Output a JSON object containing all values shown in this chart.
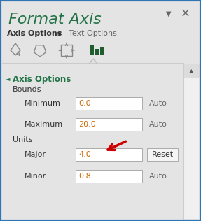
{
  "title": "Format Axis",
  "title_color": "#217346",
  "bg_color": "#E4E4E4",
  "border_color": "#2E75B6",
  "tab1": "Axis Options",
  "tab2": "Text Options",
  "section_title": "Axis Options",
  "section_color": "#217346",
  "bounds_label": "Bounds",
  "minimum_label": "Minimum",
  "maximum_label": "Maximum",
  "units_label": "Units",
  "major_label": "Major",
  "minor_label": "Minor",
  "minimum_value": "0.0",
  "maximum_value": "20.0",
  "major_value": "4.0",
  "minor_value": "0.8",
  "auto_text": "Auto",
  "reset_text": "Reset",
  "arrow_color": "#CC0000",
  "input_bg": "#FFFFFF",
  "input_border": "#AAAAAA",
  "text_color": "#333333",
  "gray_text": "#666666",
  "value_color": "#CC6600",
  "close_color": "#666666",
  "dropdown_color": "#666666",
  "icon_color": "#888888",
  "bar_color": "#1F5C2E",
  "scrollbar_bg": "#F0F0F0",
  "scrollbar_border": "#CCCCCC",
  "sep_color": "#CCCCCC",
  "triangle_color": "#BBBBBB",
  "section_tri_color": "#217346",
  "reset_bg": "#F5F5F5",
  "reset_border": "#AAAAAA"
}
